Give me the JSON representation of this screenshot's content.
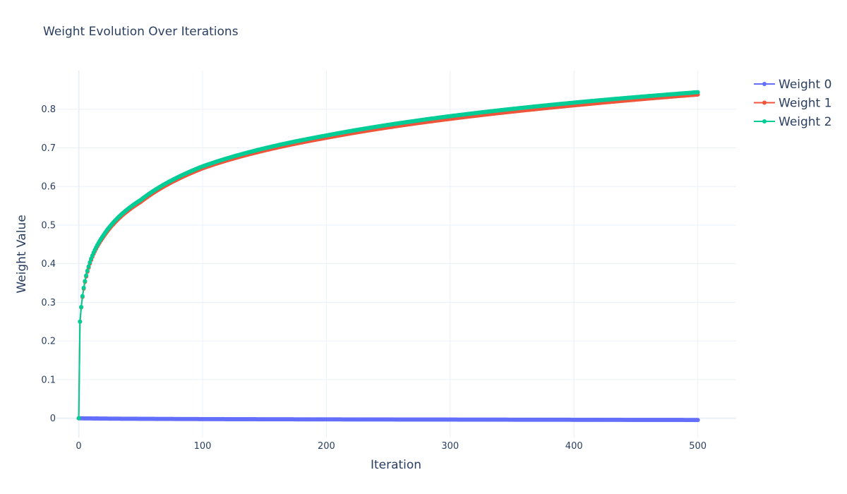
{
  "chart_data": {
    "type": "line",
    "title": "Weight Evolution Over Iterations",
    "xlabel": "Iteration",
    "ylabel": "Weight Value",
    "xlim": [
      -18,
      531
    ],
    "ylim": [
      -0.05,
      0.9
    ],
    "x_ticks": [
      0,
      100,
      200,
      300,
      400,
      500
    ],
    "y_ticks": [
      0,
      0.1,
      0.2,
      0.3,
      0.4,
      0.5,
      0.6,
      0.7,
      0.8
    ],
    "x_tick_labels": [
      "0",
      "100",
      "200",
      "300",
      "400",
      "500"
    ],
    "y_tick_labels": [
      "0",
      "0.1",
      "0.2",
      "0.3",
      "0.4",
      "0.5",
      "0.6",
      "0.7",
      "0.8"
    ],
    "grid": true,
    "legend_position": "top-right",
    "markers": true,
    "iterations": {
      "start": 0,
      "end": 500
    },
    "series": [
      {
        "name": "Weight 0",
        "color": "#636efa",
        "key_points": [
          [
            0,
            0.0
          ],
          [
            10,
            -0.0005
          ],
          [
            50,
            -0.0015
          ],
          [
            100,
            -0.0022
          ],
          [
            200,
            -0.003
          ],
          [
            300,
            -0.0035
          ],
          [
            400,
            -0.004
          ],
          [
            500,
            -0.0045
          ]
        ]
      },
      {
        "name": "Weight 1",
        "color": "#ef553b",
        "key_points": [
          [
            0,
            0.0
          ],
          [
            1,
            0.25
          ],
          [
            2,
            0.287
          ],
          [
            3,
            0.314
          ],
          [
            5,
            0.353
          ],
          [
            8,
            0.39
          ],
          [
            10,
            0.41
          ],
          [
            20,
            0.47
          ],
          [
            50,
            0.56
          ],
          [
            100,
            0.647
          ],
          [
            200,
            0.726
          ],
          [
            300,
            0.775
          ],
          [
            400,
            0.81
          ],
          [
            500,
            0.838
          ]
        ]
      },
      {
        "name": "Weight 2",
        "color": "#00cc96",
        "key_points": [
          [
            0,
            0.0
          ],
          [
            1,
            0.25
          ],
          [
            2,
            0.288
          ],
          [
            3,
            0.316
          ],
          [
            5,
            0.355
          ],
          [
            8,
            0.393
          ],
          [
            10,
            0.413
          ],
          [
            20,
            0.474
          ],
          [
            50,
            0.565
          ],
          [
            100,
            0.652
          ],
          [
            200,
            0.732
          ],
          [
            300,
            0.782
          ],
          [
            400,
            0.817
          ],
          [
            500,
            0.844
          ]
        ]
      }
    ]
  }
}
